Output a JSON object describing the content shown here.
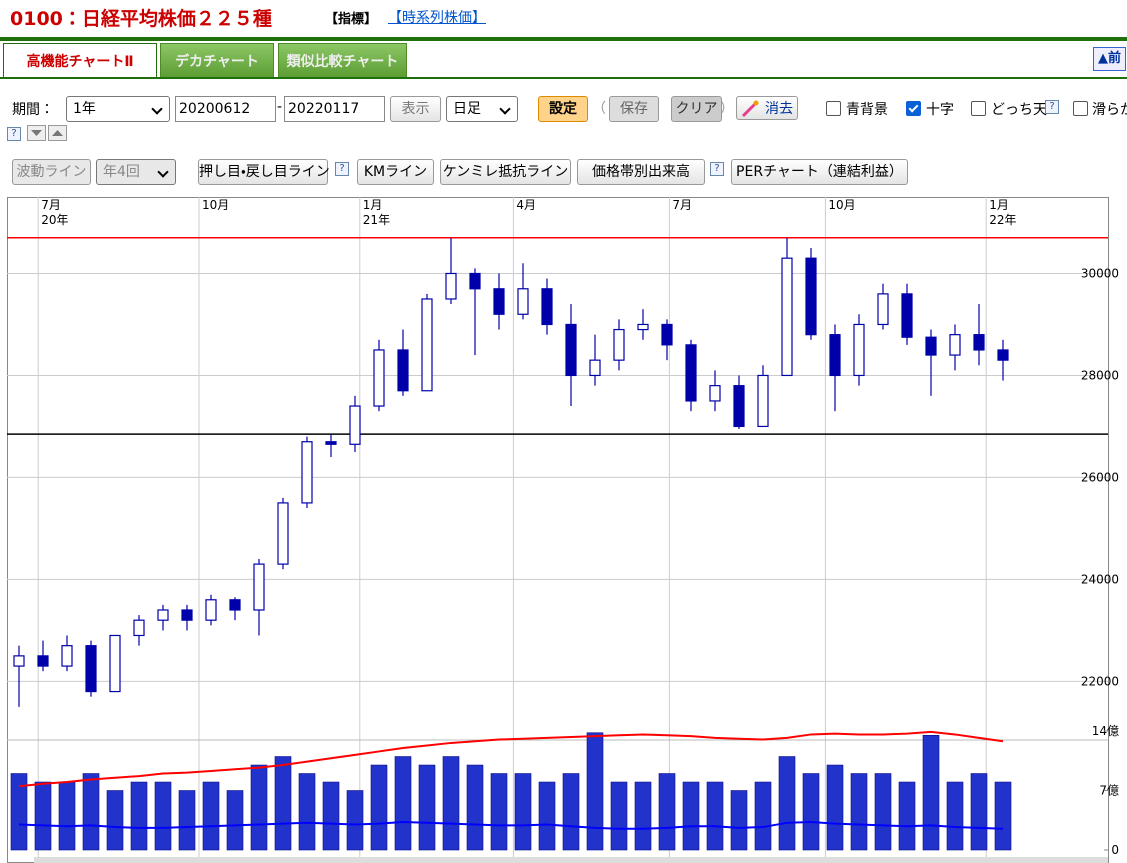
{
  "header": {
    "title": "0100：日経平均株価２２５種",
    "tag": "【指標】",
    "link": "【時系列株価】"
  },
  "tabs": [
    "高機能チャートⅡ",
    "デカチャート",
    "類似比較チャート"
  ],
  "nav": "▲前",
  "controls": {
    "period_label": "期間：",
    "period": "1年",
    "from": "20200612",
    "dash": "-",
    "to": "20220117",
    "show": "表示",
    "interval": "日足",
    "settings": "設定",
    "paren_open": "（",
    "save": "保存",
    "clear": "クリア",
    "paren_close": "）",
    "erase": "消去",
    "help": "?",
    "checkboxes": [
      {
        "label": "青背景",
        "checked": false
      },
      {
        "label": "十字",
        "checked": true
      },
      {
        "label": "どっち天",
        "checked": false
      },
      {
        "label": "滑らか",
        "checked": false
      }
    ]
  },
  "toolbar": [
    "波動ライン",
    "年4回",
    "押し目・戻し目ライン",
    "KMライン",
    "ケンミレ抵抗ライン",
    "価格帯別出来高",
    "PERチャート（連結利益）"
  ],
  "chart_data": {
    "type": "candlestick",
    "color": "#0000aa",
    "categories": [
      null,
      null,
      null,
      null,
      null,
      null,
      null,
      null,
      null,
      null,
      null,
      null,
      null,
      null,
      null,
      null,
      null,
      null,
      null,
      null,
      null,
      null,
      null,
      null,
      null,
      null,
      null,
      null,
      null,
      null,
      null,
      null,
      null,
      null,
      null,
      null,
      null,
      null,
      null,
      null,
      null,
      null
    ],
    "open": [
      22300,
      22500,
      22300,
      22700,
      21800,
      22900,
      23200,
      23400,
      23200,
      23600,
      23400,
      24300,
      25500,
      26700,
      26650,
      27400,
      28500,
      27700,
      29500,
      30000,
      29700,
      29200,
      29700,
      29000,
      28000,
      28300,
      28900,
      29000,
      28600,
      27500,
      27800,
      27000,
      28000,
      30300,
      28800,
      28000,
      29000,
      29600,
      28750,
      28400,
      28800,
      28500
    ],
    "high": [
      22700,
      22800,
      22900,
      22800,
      22900,
      23300,
      23500,
      23500,
      23700,
      23650,
      24400,
      25600,
      26800,
      26850,
      27600,
      28700,
      28900,
      29600,
      30700,
      30100,
      30000,
      30200,
      29900,
      29400,
      28800,
      29100,
      29300,
      29100,
      28700,
      28100,
      28000,
      28200,
      30700,
      30500,
      29000,
      29200,
      29800,
      29800,
      28900,
      29000,
      29400,
      28700
    ],
    "low": [
      21500,
      22200,
      22200,
      21700,
      21800,
      22700,
      23000,
      23000,
      23100,
      23200,
      22900,
      24200,
      25400,
      26400,
      26500,
      27300,
      27600,
      27700,
      29400,
      28400,
      28900,
      29100,
      28800,
      27400,
      27800,
      28100,
      28700,
      28300,
      27300,
      27300,
      26950,
      27000,
      28000,
      28700,
      27300,
      27800,
      28900,
      28600,
      27600,
      28100,
      28200,
      27900
    ],
    "close": [
      22500,
      22300,
      22700,
      21800,
      22900,
      23200,
      23400,
      23200,
      23600,
      23400,
      24300,
      25500,
      26700,
      26650,
      27400,
      28500,
      27700,
      29500,
      30000,
      29700,
      29200,
      29700,
      29000,
      28000,
      28300,
      28900,
      29000,
      28600,
      27500,
      27800,
      27000,
      28000,
      30300,
      28800,
      28000,
      29000,
      29600,
      28750,
      28400,
      28800,
      28500,
      28300
    ],
    "ylim": [
      20850,
      31500
    ],
    "yticks": [
      22000,
      24000,
      26000,
      28000,
      30000
    ],
    "grid": true,
    "reference_lines": [
      {
        "value": 30700,
        "color": "#ff0000"
      },
      {
        "value": 26850,
        "color": "#000000"
      }
    ],
    "xticks": [
      {
        "value": 0.8,
        "label": "7月",
        "year": "20年"
      },
      {
        "value": 7.5,
        "label": "10月"
      },
      {
        "value": 14.2,
        "label": "1月",
        "year": "21年"
      },
      {
        "value": 20.6,
        "label": "4月"
      },
      {
        "value": 27.1,
        "label": "7月"
      },
      {
        "value": 33.6,
        "label": "10月"
      },
      {
        "value": 40.3,
        "label": "1月",
        "year": "22年"
      }
    ],
    "volume": {
      "color": "#2233cc",
      "ylim": [
        0,
        15.3
      ],
      "yticks": [
        0,
        {
          "value": 7,
          "label": "7億"
        },
        {
          "value": 14,
          "label": "14億"
        }
      ],
      "values": [
        9,
        8,
        8,
        9,
        7,
        8,
        8,
        7,
        8,
        7,
        10,
        11,
        9,
        8,
        7,
        10,
        11,
        10,
        11,
        10,
        9,
        9,
        8,
        9,
        13.8,
        8,
        8,
        9,
        8,
        8,
        7,
        8,
        11,
        9,
        10,
        9,
        9,
        8,
        13.5,
        8,
        9,
        8
      ],
      "averages": [
        {
          "color": "#ff0000",
          "values": [
            7.5,
            7.8,
            8,
            8.3,
            8.5,
            8.7,
            9,
            9.1,
            9.3,
            9.5,
            9.7,
            10,
            10.4,
            10.8,
            11.2,
            11.6,
            12,
            12.3,
            12.6,
            12.8,
            13,
            13.1,
            13.2,
            13.3,
            13.4,
            13.5,
            13.6,
            13.5,
            13.4,
            13.2,
            13.1,
            13,
            13.2,
            13.6,
            13.7,
            13.6,
            13.6,
            13.7,
            13.9,
            13.6,
            13.2,
            12.8
          ]
        },
        {
          "color": "#0000ff",
          "values": [
            3,
            2.9,
            2.8,
            2.9,
            2.7,
            2.6,
            2.6,
            2.7,
            2.8,
            2.9,
            3,
            3.1,
            3.2,
            3.1,
            3,
            3.1,
            3.3,
            3.2,
            3.1,
            3,
            2.9,
            2.9,
            3,
            2.8,
            2.6,
            2.5,
            2.5,
            2.6,
            2.8,
            2.8,
            2.6,
            2.7,
            3.2,
            3.3,
            3.1,
            3,
            2.9,
            2.8,
            2.9,
            2.7,
            2.6,
            2.5
          ]
        }
      ]
    }
  }
}
